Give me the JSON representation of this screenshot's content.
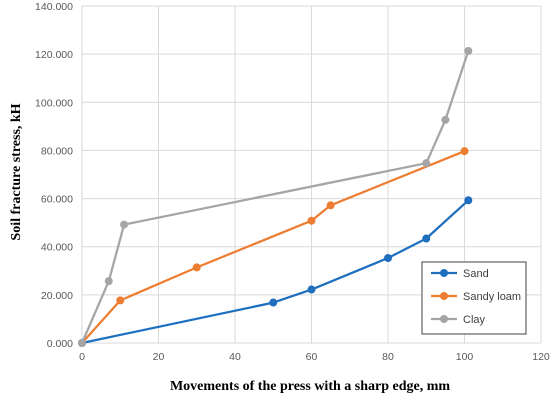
{
  "chart_data": {
    "type": "line",
    "xlabel": "Movements of the press with a sharp edge, mm",
    "ylabel": "Soil fracture stress, kH",
    "xlim": [
      0,
      120
    ],
    "ylim": [
      0,
      140000
    ],
    "x_ticks": [
      "0",
      "20",
      "40",
      "60",
      "80",
      "100",
      "120"
    ],
    "y_ticks": [
      "0.000",
      "20.000",
      "40.000",
      "60.000",
      "80.000",
      "100.000",
      "120.000",
      "140.000"
    ],
    "grid": "vertical and horizontal",
    "legend_position": "bottom-right",
    "series": [
      {
        "name": "Sand",
        "color": "#1f6fbf",
        "points": [
          [
            0,
            0
          ],
          [
            50,
            16800
          ],
          [
            60,
            22200
          ],
          [
            80,
            35300
          ],
          [
            90,
            43400
          ],
          [
            101,
            59300
          ]
        ]
      },
      {
        "name": "Sandy loam",
        "color": "#ed7d31",
        "points": [
          [
            0,
            0
          ],
          [
            10,
            17700
          ],
          [
            30,
            31400
          ],
          [
            60,
            50800
          ],
          [
            65,
            57200
          ],
          [
            100,
            79700
          ]
        ]
      },
      {
        "name": "Clay",
        "color": "#a5a5a5",
        "points": [
          [
            0,
            0
          ],
          [
            7,
            25700
          ],
          [
            11,
            49200
          ],
          [
            90,
            74700
          ],
          [
            95,
            92700
          ],
          [
            101,
            121300
          ]
        ]
      }
    ]
  }
}
